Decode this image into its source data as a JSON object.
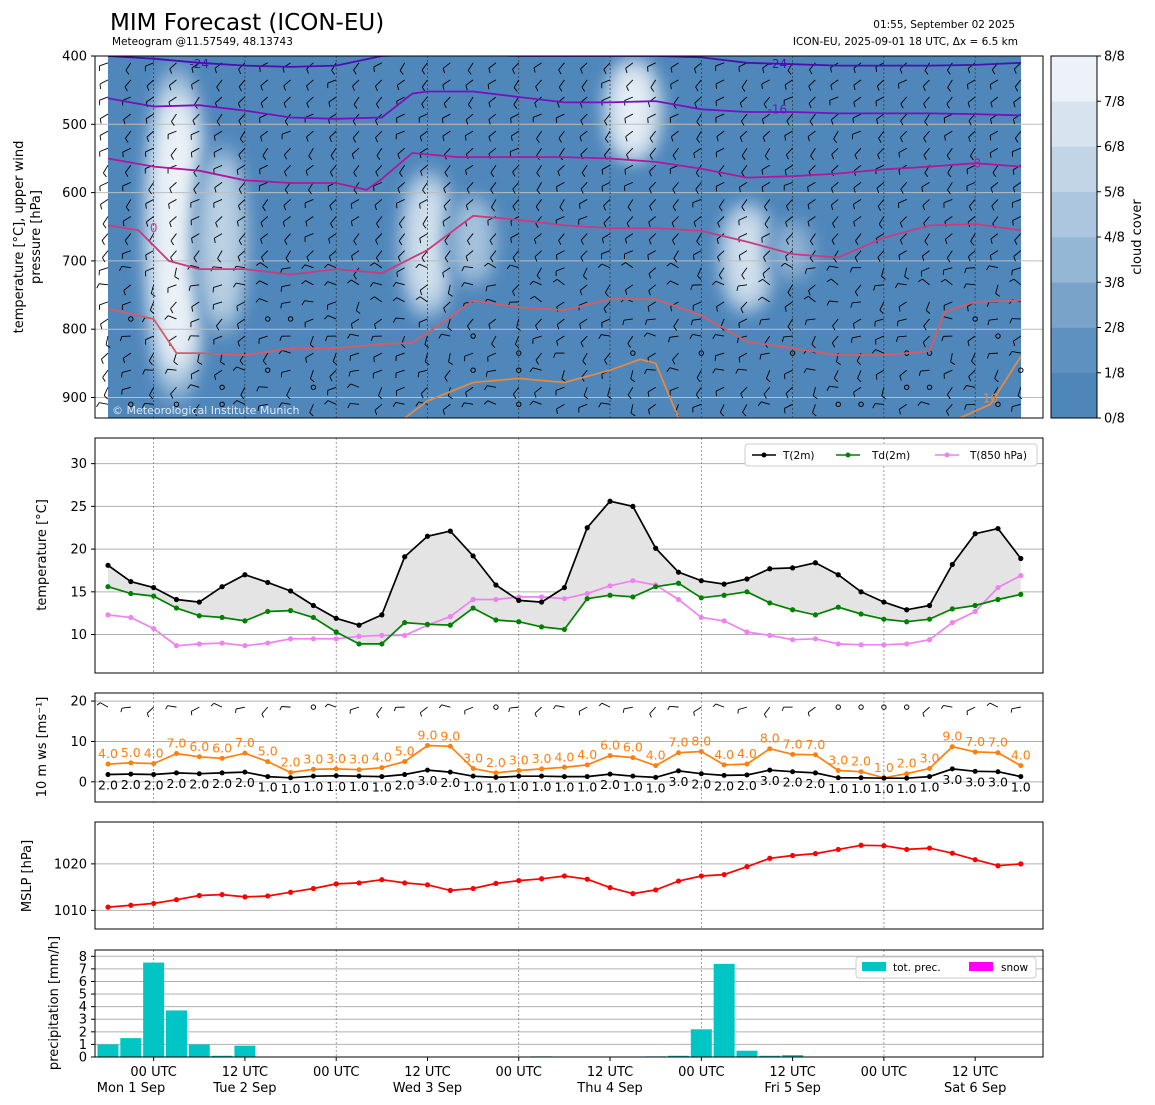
{
  "header": {
    "title": "MIM Forecast (ICON-EU)",
    "subtitle": "Meteogram @11.57549, 48.13743",
    "timestamp": "01:55, September 02 2025",
    "model_info_prefix": "ICON-EU, 2025-09-01 18 UTC, ",
    "model_info_delta": "Δx = 6.5 km",
    "watermark": "© Meteorological Institute Munich"
  },
  "time_axis": {
    "ticks": [
      "00 UTC",
      "12 UTC",
      "00 UTC",
      "12 UTC",
      "00 UTC",
      "12 UTC",
      "00 UTC",
      "12 UTC",
      "00 UTC",
      "12 UTC"
    ],
    "day_labels": [
      "Mon 1 Sep",
      "Tue 2 Sep",
      "Wed 3 Sep",
      "Thu 4 Sep",
      "Fri 5 Sep",
      "Sat 6 Sep"
    ],
    "hours_from_first_step": [
      0,
      3,
      6,
      9,
      12,
      15,
      18,
      21,
      24,
      27,
      30,
      33,
      36,
      39,
      42,
      45,
      48,
      51,
      54,
      57,
      60,
      63,
      66,
      69,
      72,
      75,
      78,
      81,
      84,
      87,
      90,
      93,
      96,
      99,
      102,
      105,
      108,
      111,
      114,
      117,
      120
    ]
  },
  "chart_data": [
    {
      "type": "heatmap",
      "panel": "cloud-cover",
      "ylabel_lines": [
        "temperature [°C], upper wind",
        "pressure [hPa]"
      ],
      "y_ticks": [
        400,
        500,
        600,
        700,
        800,
        900
      ],
      "ylim": [
        930,
        400
      ],
      "colorbar_label": "cloud cover",
      "colorbar_ticks": [
        "0/8",
        "1/8",
        "2/8",
        "3/8",
        "4/8",
        "5/8",
        "6/8",
        "7/8",
        "8/8"
      ],
      "colorbar_colors": [
        "#4e86ba",
        "#5e90c0",
        "#7aa3ca",
        "#95b7d6",
        "#abc6de",
        "#c1d5e6",
        "#d7e4ef",
        "#ecf2f8"
      ],
      "cloud_clearings": [
        {
          "hour": 9,
          "p_top": 400,
          "p_bottom": 920,
          "cover": 8
        },
        {
          "hour": 15,
          "p_top": 520,
          "p_bottom": 820,
          "cover": 5
        },
        {
          "hour": 42,
          "p_top": 560,
          "p_bottom": 790,
          "cover": 6
        },
        {
          "hour": 48,
          "p_top": 600,
          "p_bottom": 740,
          "cover": 4
        },
        {
          "hour": 69,
          "p_top": 400,
          "p_bottom": 560,
          "cover": 7
        },
        {
          "hour": 84,
          "p_top": 610,
          "p_bottom": 780,
          "cover": 6
        },
        {
          "hour": 90,
          "p_top": 640,
          "p_bottom": 730,
          "cover": 3
        }
      ],
      "isotherms": [
        {
          "label": "-24",
          "color": "#4b0fb0",
          "label_at": [
            [
              12,
              410
            ],
            [
              88,
              410
            ]
          ],
          "x": [
            0,
            6,
            12,
            18,
            24,
            30,
            36,
            42,
            48,
            54,
            60,
            66,
            72,
            78,
            84,
            90,
            96,
            102,
            108,
            114,
            120
          ],
          "p": [
            400,
            404,
            410,
            414,
            416,
            414,
            400,
            398,
            398,
            400,
            400,
            400,
            400,
            402,
            410,
            412,
            414,
            414,
            414,
            413,
            410
          ]
        },
        {
          "label": "-16",
          "color": "#7a0fbf",
          "label_at": [
            [
              88,
              477
            ]
          ],
          "x": [
            0,
            6,
            12,
            18,
            24,
            30,
            36,
            40,
            42,
            48,
            54,
            60,
            66,
            72,
            78,
            84,
            90,
            96,
            102,
            108,
            114,
            120
          ],
          "p": [
            462,
            474,
            472,
            480,
            490,
            492,
            490,
            455,
            452,
            452,
            460,
            468,
            468,
            466,
            478,
            482,
            482,
            484,
            484,
            484,
            485,
            487
          ]
        },
        {
          "label": "-8",
          "color": "#b0179c",
          "label_at": [
            [
              114,
              556
            ]
          ],
          "x": [
            0,
            6,
            12,
            18,
            24,
            30,
            34,
            36,
            40,
            46,
            50,
            54,
            60,
            66,
            72,
            78,
            84,
            90,
            96,
            102,
            108,
            114,
            120
          ],
          "p": [
            550,
            562,
            568,
            582,
            586,
            586,
            596,
            580,
            542,
            548,
            548,
            548,
            548,
            550,
            555,
            565,
            578,
            576,
            572,
            566,
            562,
            557,
            562
          ]
        },
        {
          "label": "0",
          "color": "#cc3a7d",
          "label_at": [
            [
              6,
              650
            ]
          ],
          "x": [
            0,
            4,
            8,
            12,
            18,
            24,
            30,
            36,
            42,
            48,
            54,
            60,
            66,
            72,
            78,
            84,
            90,
            96,
            102,
            108,
            114,
            120
          ],
          "p": [
            648,
            655,
            700,
            712,
            712,
            720,
            712,
            718,
            684,
            634,
            640,
            648,
            652,
            652,
            656,
            672,
            690,
            695,
            666,
            648,
            646,
            655
          ]
        },
        {
          "label": "",
          "color": "#d65b66",
          "label_at": [],
          "x": [
            0,
            6,
            9,
            12,
            18,
            24,
            30,
            36,
            40,
            44,
            48,
            54,
            60,
            66,
            72,
            78,
            84,
            90,
            96,
            102,
            108,
            110,
            114,
            120
          ],
          "p": [
            770,
            785,
            835,
            835,
            838,
            828,
            828,
            822,
            820,
            790,
            758,
            768,
            772,
            756,
            756,
            780,
            818,
            828,
            838,
            838,
            832,
            775,
            760,
            758
          ]
        },
        {
          "label": "16",
          "color": "#e08a46",
          "label_at": [
            [
              116,
              900
            ]
          ],
          "x": [
            39,
            42,
            48,
            54,
            60,
            66,
            70,
            72,
            75,
            112,
            116,
            118,
            120
          ],
          "p": [
            930,
            905,
            878,
            872,
            878,
            860,
            844,
            850,
            930,
            930,
            910,
            875,
            840
          ]
        }
      ],
      "wind_barbs_note": "upper wind barbs shown across all levels"
    },
    {
      "type": "line",
      "panel": "temperature",
      "ylabel": "temperature [°C]",
      "y_ticks": [
        10,
        15,
        20,
        25,
        30
      ],
      "ylim": [
        5.5,
        33
      ],
      "legend_position": "top-right",
      "series": [
        {
          "name": "T(2m)",
          "color": "#000000",
          "values": [
            18.1,
            16.2,
            15.5,
            14.1,
            13.8,
            15.6,
            17.0,
            16.1,
            15.1,
            13.4,
            11.9,
            11.1,
            12.3,
            19.1,
            21.5,
            22.1,
            19.2,
            15.8,
            14.0,
            13.8,
            15.5,
            22.5,
            25.6,
            25.0,
            20.1,
            17.3,
            16.3,
            15.9,
            16.5,
            17.7,
            17.8,
            18.4,
            17.0,
            15.0,
            13.8,
            12.9,
            13.4,
            18.2,
            21.8,
            22.4,
            18.9
          ]
        },
        {
          "name": "Td(2m)",
          "color": "#008000",
          "values": [
            15.6,
            14.8,
            14.5,
            13.1,
            12.2,
            12.0,
            11.6,
            12.7,
            12.8,
            12.0,
            10.3,
            8.9,
            8.9,
            11.4,
            11.2,
            11.1,
            13.1,
            11.7,
            11.5,
            10.9,
            10.6,
            14.2,
            14.6,
            14.4,
            15.6,
            16.0,
            14.3,
            14.6,
            15.0,
            13.7,
            12.9,
            12.3,
            13.2,
            12.4,
            11.8,
            11.5,
            11.8,
            13.0,
            13.4,
            14.1,
            14.7
          ]
        },
        {
          "name": "T(850 hPa)",
          "color": "#ee82ee",
          "values": [
            12.3,
            12.0,
            10.7,
            8.7,
            8.9,
            9.0,
            8.7,
            9.0,
            9.5,
            9.5,
            9.5,
            9.8,
            9.9,
            9.9,
            11.1,
            12.1,
            14.1,
            14.1,
            14.4,
            14.4,
            14.2,
            14.8,
            15.7,
            16.3,
            15.8,
            14.1,
            12.0,
            11.6,
            10.3,
            9.9,
            9.4,
            9.5,
            8.9,
            8.8,
            8.8,
            8.9,
            9.4,
            11.4,
            12.7,
            15.5,
            16.9
          ]
        }
      ]
    },
    {
      "type": "line",
      "panel": "wind-speed",
      "ylabel": "10 m ws [ms⁻¹]",
      "y_ticks": [
        0,
        10,
        20
      ],
      "ylim": [
        -5,
        22
      ],
      "series": [
        {
          "name": "gust",
          "color": "#ff7f0e",
          "values": [
            4.4,
            4.7,
            4.5,
            7.0,
            6.2,
            5.8,
            7.1,
            5.0,
            2.3,
            3.1,
            3.2,
            3.0,
            3.5,
            5.0,
            9.0,
            8.8,
            3.3,
            2.2,
            2.8,
            3.2,
            3.6,
            4.2,
            6.5,
            6.0,
            4.0,
            7.2,
            7.5,
            4.2,
            4.4,
            8.2,
            6.8,
            6.7,
            2.8,
            2.5,
            1.0,
            2.0,
            3.3,
            8.7,
            7.4,
            7.2,
            4.0
          ]
        },
        {
          "name": "mean",
          "color": "#000000",
          "values": [
            1.8,
            1.9,
            1.8,
            2.2,
            2.0,
            2.2,
            2.4,
            1.3,
            1.0,
            1.4,
            1.5,
            1.4,
            1.3,
            1.8,
            2.9,
            2.4,
            1.4,
            1.1,
            1.4,
            1.4,
            1.3,
            1.3,
            1.9,
            1.4,
            1.1,
            2.7,
            2.0,
            1.6,
            1.7,
            2.9,
            2.5,
            2.2,
            1.0,
            1.0,
            0.9,
            0.9,
            1.3,
            3.2,
            2.6,
            2.5,
            1.3
          ]
        },
        {
          "name": "gust_labels",
          "values": [
            "4.0",
            "5.0",
            "4.0",
            "7.0",
            "6.0",
            "6.0",
            "7.0",
            "5.0",
            "2.0",
            "3.0",
            "3.0",
            "3.0",
            "4.0",
            "5.0",
            "9.0",
            "9.0",
            "3.0",
            "2.0",
            "3.0",
            "3.0",
            "4.0",
            "4.0",
            "6.0",
            "6.0",
            "4.0",
            "7.0",
            "8.0",
            "4.0",
            "4.0",
            "8.0",
            "7.0",
            "7.0",
            "3.0",
            "2.0",
            "1.0",
            "2.0",
            "3.0",
            "9.0",
            "7.0",
            "7.0",
            "4.0"
          ]
        },
        {
          "name": "mean_labels",
          "values": [
            "2.0",
            "2.0",
            "2.0",
            "2.0",
            "2.0",
            "2.0",
            "2.0",
            "1.0",
            "1.0",
            "1.0",
            "1.0",
            "1.0",
            "1.0",
            "2.0",
            "3.0",
            "2.0",
            "1.0",
            "1.0",
            "1.0",
            "1.0",
            "1.0",
            "1.0",
            "2.0",
            "1.0",
            "1.0",
            "3.0",
            "2.0",
            "2.0",
            "2.0",
            "3.0",
            "2.0",
            "2.0",
            "1.0",
            "1.0",
            "1.0",
            "1.0",
            "1.0",
            "3.0",
            "3.0",
            "3.0",
            "1.0"
          ]
        }
      ],
      "wind_dir_barbs": [
        "barb",
        "barb",
        "barb",
        "barb",
        "barb",
        "barb",
        "barb",
        "barb",
        "barb",
        "calm",
        "barb",
        "barb",
        "barb",
        "barb",
        "barb",
        "barb",
        "barb",
        "calm",
        "barb",
        "barb",
        "barb",
        "barb",
        "barb",
        "barb",
        "barb",
        "barb",
        "barb",
        "barb",
        "barb",
        "barb",
        "barb",
        "barb",
        "calm",
        "calm",
        "calm",
        "calm",
        "barb",
        "barb",
        "barb",
        "barb",
        "barb"
      ]
    },
    {
      "type": "line",
      "panel": "mslp",
      "ylabel": "MSLP [hPa]",
      "y_ticks": [
        1010,
        1020
      ],
      "ylim": [
        1006,
        1029
      ],
      "series": [
        {
          "name": "MSLP",
          "color": "#ff0000",
          "values": [
            1010.7,
            1011.1,
            1011.5,
            1012.3,
            1013.2,
            1013.4,
            1012.9,
            1013.1,
            1013.9,
            1014.7,
            1015.7,
            1015.9,
            1016.6,
            1015.9,
            1015.5,
            1014.3,
            1014.7,
            1015.8,
            1016.4,
            1016.8,
            1017.4,
            1016.7,
            1014.9,
            1013.6,
            1014.4,
            1016.3,
            1017.4,
            1017.7,
            1019.4,
            1021.2,
            1021.8,
            1022.2,
            1023.1,
            1024.0,
            1023.9,
            1023.1,
            1023.4,
            1022.3,
            1020.9,
            1019.6,
            1020.0
          ]
        }
      ]
    },
    {
      "type": "bar",
      "panel": "precipitation",
      "ylabel": "precipitation [mm/h]",
      "y_ticks": [
        0,
        1,
        2,
        3,
        4,
        5,
        6,
        7,
        8
      ],
      "ylim": [
        0,
        8.5
      ],
      "legend_position": "top-right",
      "series": [
        {
          "name": "tot. prec.",
          "color": "#00c5c5",
          "values": [
            1.0,
            1.5,
            7.5,
            3.7,
            1.0,
            0.1,
            0.9,
            0,
            0,
            0,
            0,
            0,
            0,
            0,
            0,
            0,
            0,
            0,
            0,
            0.05,
            0,
            0,
            0,
            0,
            0.05,
            0.1,
            2.2,
            7.4,
            0.5,
            0.1,
            0.15,
            0,
            0,
            0,
            0,
            0,
            0,
            0,
            0,
            0,
            0
          ]
        },
        {
          "name": "snow",
          "color": "#ff00ff",
          "values": [
            0,
            0,
            0,
            0,
            0,
            0,
            0,
            0,
            0,
            0,
            0,
            0,
            0,
            0,
            0,
            0,
            0,
            0,
            0,
            0,
            0,
            0,
            0,
            0,
            0,
            0,
            0,
            0,
            0,
            0,
            0,
            0,
            0,
            0,
            0,
            0,
            0,
            0,
            0,
            0,
            0
          ]
        }
      ]
    }
  ]
}
